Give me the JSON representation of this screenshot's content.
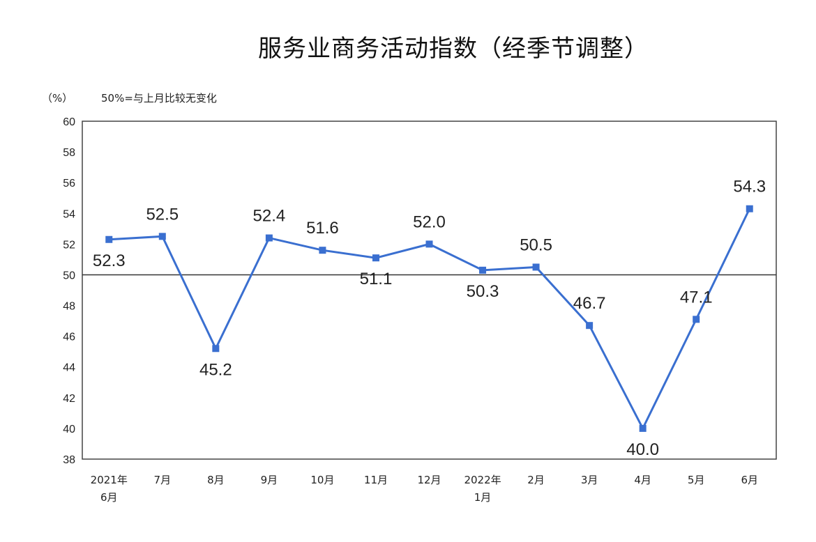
{
  "header": {
    "title": "服务业商务活动指数（经季节调整）",
    "unit": "（%）",
    "note": "50%=与上月比较无变化"
  },
  "colors": {
    "line": "#3a6fd0",
    "axis": "#444444"
  },
  "chart_data": {
    "type": "line",
    "title": "服务业商务活动指数（经季节调整）",
    "ylabel": "（%）",
    "annotation": "50%=与上月比较无变化",
    "ylim": [
      38,
      60
    ],
    "yticks": [
      38,
      40,
      42,
      44,
      46,
      48,
      50,
      52,
      54,
      56,
      58,
      60
    ],
    "reference_line": 50,
    "grid": false,
    "legend": null,
    "categories": [
      "2021年6月",
      "7月",
      "8月",
      "9月",
      "10月",
      "11月",
      "12月",
      "2022年1月",
      "2月",
      "3月",
      "4月",
      "5月",
      "6月"
    ],
    "x_tick_lines": [
      [
        "2021年",
        "6月"
      ],
      [
        "7月"
      ],
      [
        "8月"
      ],
      [
        "9月"
      ],
      [
        "10月"
      ],
      [
        "11月"
      ],
      [
        "12月"
      ],
      [
        "2022年",
        "1月"
      ],
      [
        "2月"
      ],
      [
        "3月"
      ],
      [
        "4月"
      ],
      [
        "5月"
      ],
      [
        "6月"
      ]
    ],
    "series": [
      {
        "name": "服务业商务活动指数",
        "values": [
          52.3,
          52.5,
          45.2,
          52.4,
          51.6,
          51.1,
          52.0,
          50.3,
          50.5,
          46.7,
          40.0,
          47.1,
          54.3
        ]
      }
    ]
  }
}
